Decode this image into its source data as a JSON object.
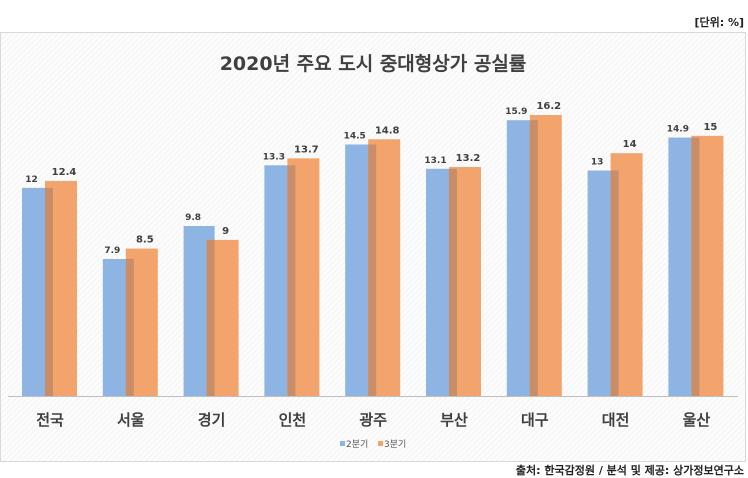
{
  "unit_label": "[단위: %]",
  "source": "출처: 한국감정원 / 분석 및 제공: 상가정보연구소",
  "colors": {
    "q2": "#8DB4E2",
    "q3": "#F2A46C",
    "overlap": "#C98E68"
  },
  "chart_data": {
    "type": "bar",
    "title": "2020년 주요 도시 중대형상가 공실률",
    "categories": [
      "전국",
      "서울",
      "경기",
      "인천",
      "광주",
      "부산",
      "대구",
      "대전",
      "울산"
    ],
    "series": [
      {
        "name": "2분기",
        "values": [
          12,
          7.9,
          9.8,
          13.3,
          14.5,
          13.1,
          15.9,
          13,
          14.9
        ]
      },
      {
        "name": "3분기",
        "values": [
          12.4,
          8.5,
          9,
          13.7,
          14.8,
          13.2,
          16.2,
          14,
          15
        ]
      }
    ],
    "ylim": [
      0,
      18
    ],
    "grid": false,
    "legend": "bottom"
  }
}
